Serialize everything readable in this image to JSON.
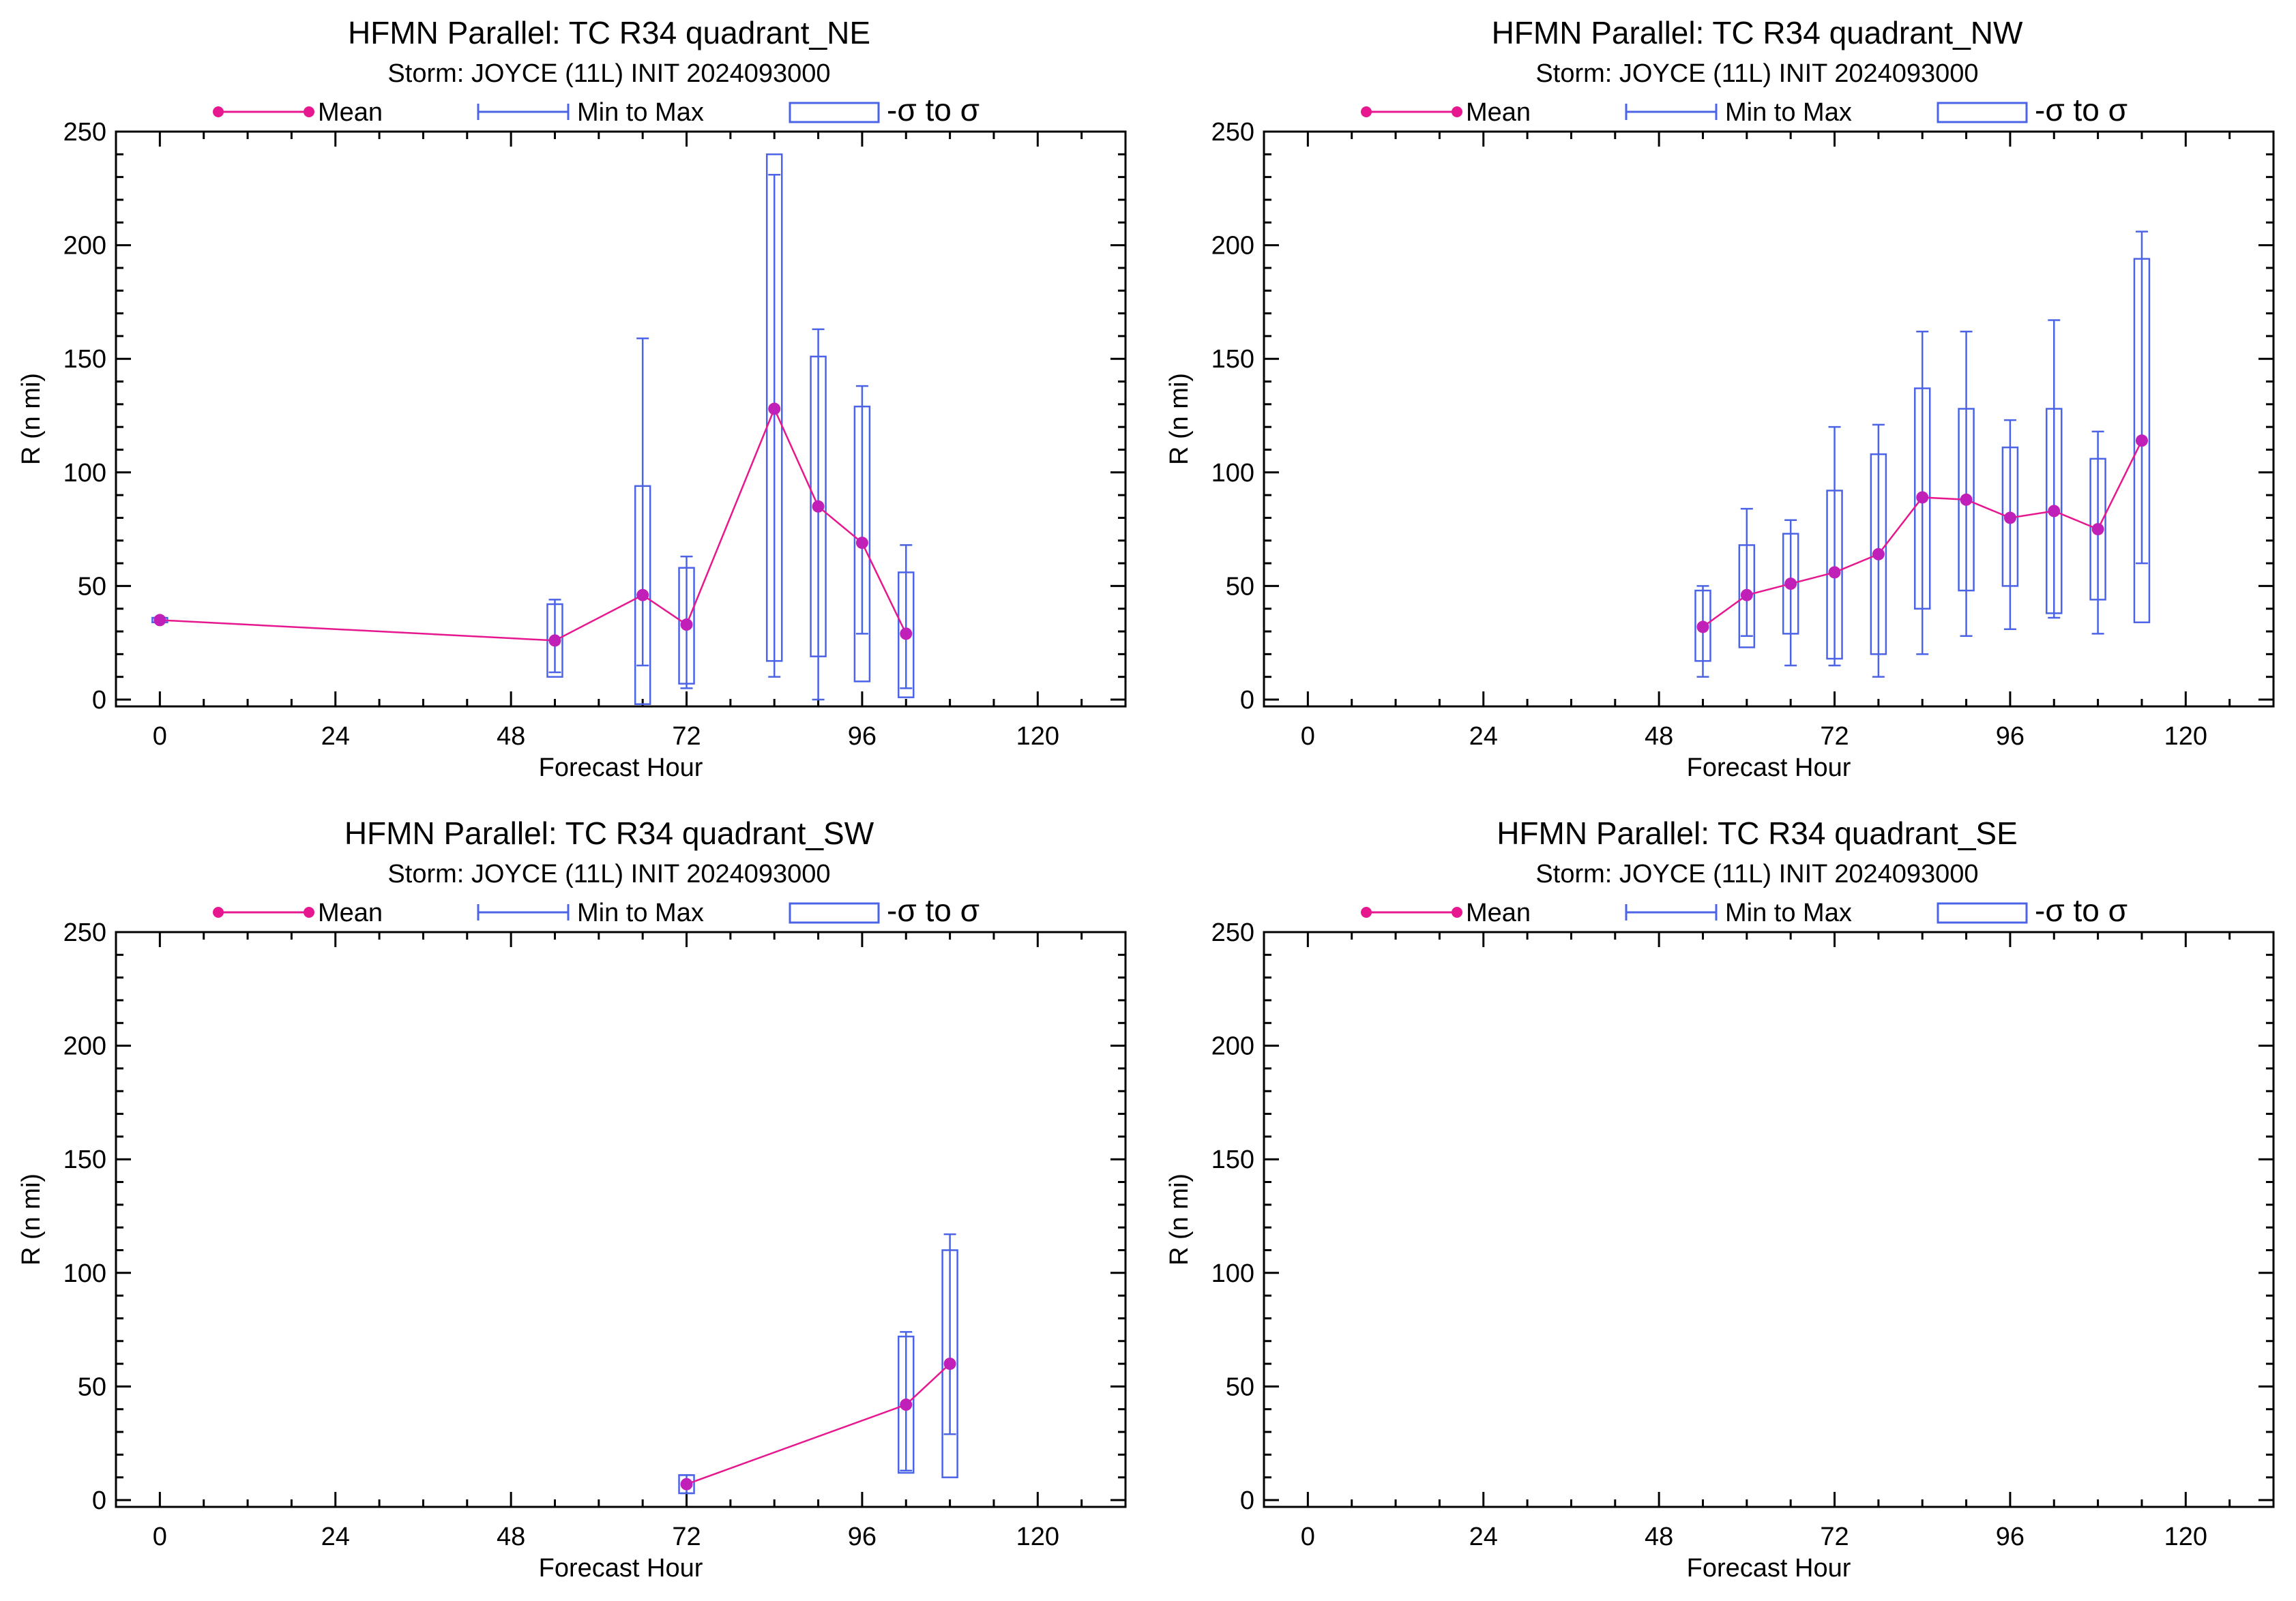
{
  "colors": {
    "mean": "#e6178f",
    "mean_marker": "#c01fb8",
    "range": "#4b63e6",
    "axis": "#000000"
  },
  "chart_data": [
    {
      "type": "box",
      "title": "HFMN Parallel: TC  R34 quadrant_NE",
      "subtitle": "Storm: JOYCE (11L) INIT 2024093000",
      "legend": {
        "mean": "Mean",
        "range": "Min to Max",
        "sigma": "-σ to σ"
      },
      "xlabel": "Forecast Hour",
      "ylabel": "R (n mi)",
      "xlim": [
        -6,
        132
      ],
      "ylim": [
        -3,
        250
      ],
      "xticks": [
        0,
        24,
        48,
        72,
        96,
        120
      ],
      "yticks": [
        0,
        50,
        100,
        150,
        200,
        250
      ],
      "points": [
        {
          "x": 0,
          "mean": 35,
          "min": 34,
          "max": 36,
          "sd_low": 34,
          "sd_high": 36
        },
        {
          "x": 54,
          "mean": 26,
          "min": 12,
          "max": 44,
          "sd_low": 10,
          "sd_high": 42
        },
        {
          "x": 66,
          "mean": 46,
          "min": 15,
          "max": 159,
          "sd_low": -2,
          "sd_high": 94
        },
        {
          "x": 72,
          "mean": 33,
          "min": 5,
          "max": 63,
          "sd_low": 7,
          "sd_high": 58
        },
        {
          "x": 84,
          "mean": 128,
          "min": 10,
          "max": 231,
          "sd_low": 17,
          "sd_high": 240
        },
        {
          "x": 90,
          "mean": 85,
          "min": 0,
          "max": 163,
          "sd_low": 19,
          "sd_high": 151
        },
        {
          "x": 96,
          "mean": 69,
          "min": 29,
          "max": 138,
          "sd_low": 8,
          "sd_high": 129
        },
        {
          "x": 102,
          "mean": 29,
          "min": 5,
          "max": 68,
          "sd_low": 1,
          "sd_high": 56
        }
      ]
    },
    {
      "type": "box",
      "title": "HFMN Parallel: TC  R34 quadrant_NW",
      "subtitle": "Storm: JOYCE (11L) INIT 2024093000",
      "legend": {
        "mean": "Mean",
        "range": "Min to Max",
        "sigma": "-σ to σ"
      },
      "xlabel": "Forecast Hour",
      "ylabel": "R (n mi)",
      "xlim": [
        -6,
        132
      ],
      "ylim": [
        -3,
        250
      ],
      "xticks": [
        0,
        24,
        48,
        72,
        96,
        120
      ],
      "yticks": [
        0,
        50,
        100,
        150,
        200,
        250
      ],
      "points": [
        {
          "x": 54,
          "mean": 32,
          "min": 10,
          "max": 50,
          "sd_low": 17,
          "sd_high": 48
        },
        {
          "x": 60,
          "mean": 46,
          "min": 28,
          "max": 84,
          "sd_low": 23,
          "sd_high": 68
        },
        {
          "x": 66,
          "mean": 51,
          "min": 15,
          "max": 79,
          "sd_low": 29,
          "sd_high": 73
        },
        {
          "x": 72,
          "mean": 56,
          "min": 15,
          "max": 120,
          "sd_low": 18,
          "sd_high": 92
        },
        {
          "x": 78,
          "mean": 64,
          "min": 10,
          "max": 121,
          "sd_low": 20,
          "sd_high": 108
        },
        {
          "x": 84,
          "mean": 89,
          "min": 20,
          "max": 162,
          "sd_low": 40,
          "sd_high": 137
        },
        {
          "x": 90,
          "mean": 88,
          "min": 28,
          "max": 162,
          "sd_low": 48,
          "sd_high": 128
        },
        {
          "x": 96,
          "mean": 80,
          "min": 31,
          "max": 123,
          "sd_low": 50,
          "sd_high": 111
        },
        {
          "x": 102,
          "mean": 83,
          "min": 36,
          "max": 167,
          "sd_low": 38,
          "sd_high": 128
        },
        {
          "x": 108,
          "mean": 75,
          "min": 29,
          "max": 118,
          "sd_low": 44,
          "sd_high": 106
        },
        {
          "x": 114,
          "mean": 114,
          "min": 60,
          "max": 206,
          "sd_low": 34,
          "sd_high": 194
        }
      ]
    },
    {
      "type": "box",
      "title": "HFMN Parallel: TC  R34 quadrant_SW",
      "subtitle": "Storm: JOYCE (11L) INIT 2024093000",
      "legend": {
        "mean": "Mean",
        "range": "Min to Max",
        "sigma": "-σ to σ"
      },
      "xlabel": "Forecast Hour",
      "ylabel": "R (n mi)",
      "xlim": [
        -6,
        132
      ],
      "ylim": [
        -3,
        250
      ],
      "xticks": [
        0,
        24,
        48,
        72,
        96,
        120
      ],
      "yticks": [
        0,
        50,
        100,
        150,
        200,
        250
      ],
      "points": [
        {
          "x": 72,
          "mean": 7,
          "min": 3,
          "max": 11,
          "sd_low": 3,
          "sd_high": 11
        },
        {
          "x": 102,
          "mean": 42,
          "min": 13,
          "max": 74,
          "sd_low": 12,
          "sd_high": 72
        },
        {
          "x": 108,
          "mean": 60,
          "min": 29,
          "max": 117,
          "sd_low": 10,
          "sd_high": 110
        }
      ]
    },
    {
      "type": "box",
      "title": "HFMN Parallel: TC  R34 quadrant_SE",
      "subtitle": "Storm: JOYCE (11L) INIT 2024093000",
      "legend": {
        "mean": "Mean",
        "range": "Min to Max",
        "sigma": "-σ to σ"
      },
      "xlabel": "Forecast Hour",
      "ylabel": "R (n mi)",
      "xlim": [
        -6,
        132
      ],
      "ylim": [
        -3,
        250
      ],
      "xticks": [
        0,
        24,
        48,
        72,
        96,
        120
      ],
      "yticks": [
        0,
        50,
        100,
        150,
        200,
        250
      ],
      "points": []
    }
  ]
}
